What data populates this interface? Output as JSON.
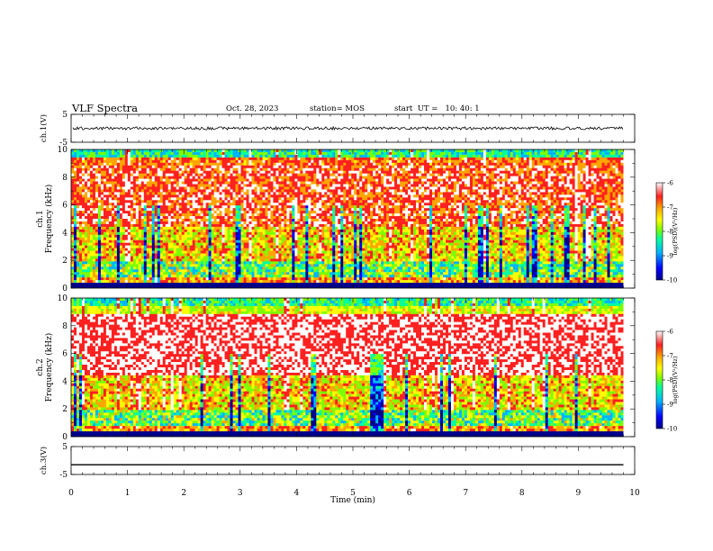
{
  "header": {
    "title": "VLF Spectra",
    "date": "Oct. 28, 2023",
    "station": "station= MOS",
    "start": "start  UT =   10: 40: 1"
  },
  "colors": {
    "colormap": [
      "#00008b",
      "#0000ff",
      "#00b4ff",
      "#00ffa0",
      "#7fff00",
      "#ffff00",
      "#ffa500",
      "#ff2020",
      "#ffffff"
    ],
    "trace": "#000000"
  },
  "chart_data": [
    {
      "type": "line",
      "panel": "ch1-waveform",
      "ylabel": "ch.1(V)",
      "ylim": [
        -5,
        5
      ],
      "yticks": [
        "5",
        "-5"
      ],
      "x": [
        0,
        1,
        2,
        3,
        4,
        5,
        6,
        7,
        8,
        9,
        9.8
      ],
      "y": [
        0,
        0,
        0,
        0,
        0,
        0,
        0,
        0,
        0,
        0,
        0
      ],
      "xlim": [
        0,
        10
      ]
    },
    {
      "type": "heatmap",
      "panel": "ch1-spectrogram",
      "ylabel_top": "ch.1",
      "ylabel": "Frequency (kHz)",
      "ylim": [
        0,
        10
      ],
      "yticks": [
        "0",
        "2",
        "4",
        "6",
        "8",
        "10"
      ],
      "xlim": [
        0,
        10
      ],
      "data_extent_min": 9.8,
      "colorbar": {
        "label": "log(PSD)(V²/Hz)",
        "ticks": [
          "-6",
          "-7",
          "-8",
          "-9",
          "-10"
        ],
        "range": [
          -10,
          -6
        ]
      }
    },
    {
      "type": "heatmap",
      "panel": "ch2-spectrogram",
      "ylabel_top": "ch.2",
      "ylabel": "Frequency (kHz)",
      "ylim": [
        0,
        10
      ],
      "yticks": [
        "0",
        "2",
        "4",
        "6",
        "8",
        "10"
      ],
      "xlim": [
        0,
        10
      ],
      "data_extent_min": 9.8,
      "colorbar": {
        "label": "log(PSD)(V²/Hz)",
        "ticks": [
          "-6",
          "-7",
          "-8",
          "-9",
          "-10"
        ],
        "range": [
          -10,
          -6
        ]
      }
    },
    {
      "type": "line",
      "panel": "ch3-waveform",
      "ylabel": "ch.3(V)",
      "ylim": [
        -5,
        5
      ],
      "yticks": [
        "5",
        "-5"
      ],
      "x": [
        0,
        9.8
      ],
      "y": [
        -1.5,
        -1.5
      ],
      "xlim": [
        0,
        10
      ],
      "xlabel": "Time  (min)",
      "xticks": [
        "0",
        "1",
        "2",
        "3",
        "4",
        "5",
        "6",
        "7",
        "8",
        "9",
        "10"
      ]
    }
  ]
}
